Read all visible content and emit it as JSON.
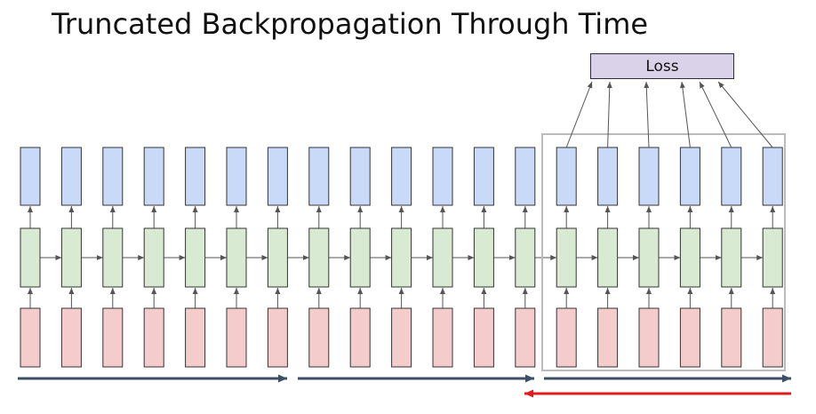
{
  "title": "Truncated Backpropagation Through Time",
  "loss": {
    "label": "Loss"
  },
  "colors": {
    "output_fill": "#c9daf8",
    "hidden_fill": "#d9ead3",
    "input_fill": "#f4cccc",
    "node_stroke": "#333333",
    "connector": "#555555",
    "loss_fill": "#d9d2e9",
    "forward_arrow": "#3d4f66",
    "backward_arrow": "#e31b1b",
    "window_border": "#bbbbbb"
  },
  "diagram": {
    "timesteps": 19,
    "chunks": 3,
    "loss_connected_timesteps": 6,
    "highlighted_chunk": 3,
    "forward_arrows_per_chunk": "forward",
    "backward_arrow_chunk": 3
  }
}
